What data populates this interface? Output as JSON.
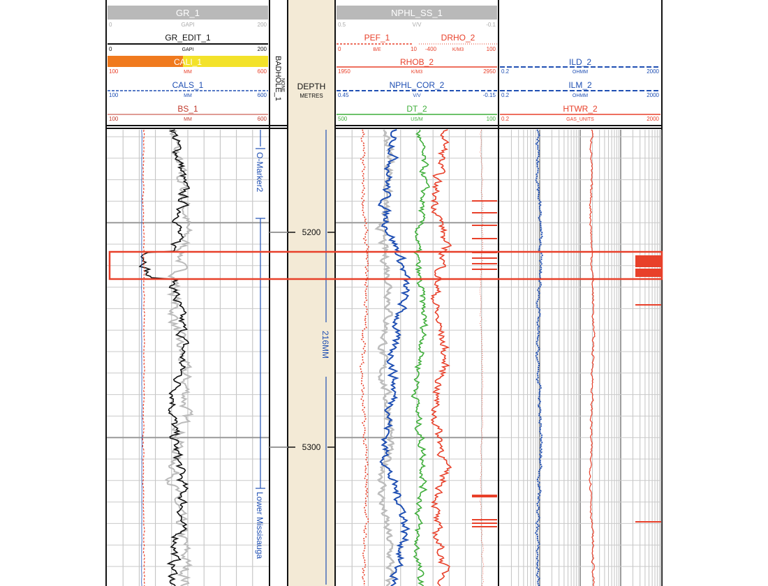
{
  "colors": {
    "black": "#111111",
    "red": "#e8402a",
    "blue": "#1f4fb3",
    "green": "#3fae3a",
    "grey": "#b9b9b9",
    "orange": "#f07a1e",
    "yellow": "#f3e22a",
    "depth_band": "#f3ead6",
    "grid": "#9a9a9a",
    "highlight": "#e8402a"
  },
  "track1": {
    "gr": {
      "name": "GR_1",
      "left": "0",
      "unit": "GAPI",
      "right": "200"
    },
    "gr_edit": {
      "name": "GR_EDIT_1",
      "left": "0",
      "unit": "GAPI",
      "right": "200"
    },
    "cali": {
      "name": "CALI_1",
      "left": "100",
      "unit": "MM",
      "right": "600"
    },
    "cals": {
      "name": "CALS_1",
      "left": "100",
      "unit": "MM",
      "right": "600"
    },
    "bs": {
      "name": "BS_1",
      "left": "100",
      "unit": "MM",
      "right": "600"
    }
  },
  "badhole": {
    "name": "BADHOLE_1",
    "unit": "NONE"
  },
  "depth_track": {
    "title": "DEPTH",
    "unit": "METRES",
    "labels": [
      "5200",
      "5300"
    ],
    "bit_size": "216MM"
  },
  "track2": {
    "nphl_ss": {
      "name": "NPHL_SS_1",
      "left": "0.5",
      "unit": "V/V",
      "right": "-0.1"
    },
    "pef": {
      "name": "PEF_1",
      "left": "0",
      "unit": "B/E",
      "right": "10"
    },
    "drho": {
      "name": "DRHO_2",
      "left": "-400",
      "unit": "K/M3",
      "right": "100"
    },
    "rhob": {
      "name": "RHOB_2",
      "left": "1950",
      "unit": "K/M3",
      "right": "2950"
    },
    "nphl_cor": {
      "name": "NPHL_COR_2",
      "left": "0.45",
      "unit": "V/V",
      "right": "-0.15"
    },
    "dt": {
      "name": "DT_2",
      "left": "500",
      "unit": "US/M",
      "right": "100"
    }
  },
  "track3": {
    "ild": {
      "name": "ILD_2",
      "left": "0.2",
      "unit": "OHMM",
      "right": "2000"
    },
    "ilm": {
      "name": "ILM_2",
      "left": "0.2",
      "unit": "OHMM",
      "right": "2000"
    },
    "htwr": {
      "name": "HTWR_2",
      "left": "0.2",
      "unit": "GAS_UNITS",
      "right": "2000"
    }
  },
  "markers": {
    "top": "O-Marker2",
    "bottom": "Lower Missisauga"
  }
}
